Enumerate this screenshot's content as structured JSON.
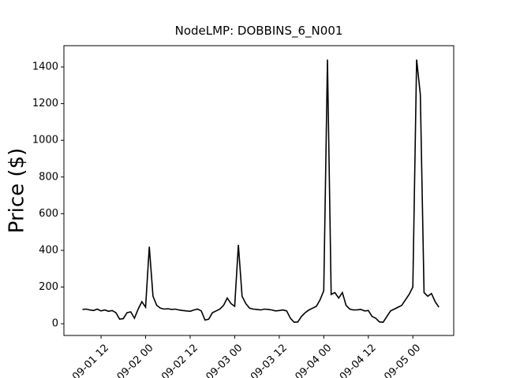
{
  "chart_data": {
    "type": "line",
    "title": "NodeLMP: DOBBINS_6_N001",
    "ylabel": "Price ($)",
    "x": [
      "09-01 07",
      "09-01 08",
      "09-01 09",
      "09-01 10",
      "09-01 11",
      "09-01 12",
      "09-01 13",
      "09-01 14",
      "09-01 15",
      "09-01 16",
      "09-01 17",
      "09-01 18",
      "09-01 19",
      "09-01 20",
      "09-01 21",
      "09-01 22",
      "09-01 23",
      "09-02 00",
      "09-02 01",
      "09-02 02",
      "09-02 03",
      "09-02 04",
      "09-02 05",
      "09-02 06",
      "09-02 07",
      "09-02 08",
      "09-02 09",
      "09-02 10",
      "09-02 11",
      "09-02 12",
      "09-02 13",
      "09-02 14",
      "09-02 15",
      "09-02 16",
      "09-02 17",
      "09-02 18",
      "09-02 19",
      "09-02 20",
      "09-02 21",
      "09-02 22",
      "09-02 23",
      "09-03 00",
      "09-03 01",
      "09-03 02",
      "09-03 03",
      "09-03 04",
      "09-03 05",
      "09-03 06",
      "09-03 07",
      "09-03 08",
      "09-03 09",
      "09-03 10",
      "09-03 11",
      "09-03 12",
      "09-03 13",
      "09-03 14",
      "09-03 15",
      "09-03 16",
      "09-03 17",
      "09-03 18",
      "09-03 19",
      "09-03 20",
      "09-03 21",
      "09-03 22",
      "09-03 23",
      "09-04 00",
      "09-04 01",
      "09-04 02",
      "09-04 03",
      "09-04 04",
      "09-04 05",
      "09-04 06",
      "09-04 07",
      "09-04 08",
      "09-04 09",
      "09-04 10",
      "09-04 11",
      "09-04 12",
      "09-04 13",
      "09-04 14",
      "09-04 15",
      "09-04 16",
      "09-04 17",
      "09-04 18",
      "09-04 19",
      "09-04 20",
      "09-04 21",
      "09-04 22",
      "09-04 23",
      "09-05 00",
      "09-05 01",
      "09-05 02",
      "09-05 03",
      "09-05 04",
      "09-05 05",
      "09-05 06",
      "09-05 07"
    ],
    "series": [
      {
        "color": "#000000",
        "values": [
          78,
          80,
          75,
          72,
          80,
          70,
          75,
          68,
          72,
          60,
          25,
          28,
          60,
          65,
          30,
          80,
          120,
          90,
          420,
          150,
          100,
          85,
          80,
          82,
          78,
          80,
          75,
          72,
          70,
          68,
          75,
          80,
          70,
          20,
          25,
          60,
          70,
          80,
          100,
          140,
          110,
          95,
          430,
          150,
          110,
          85,
          80,
          78,
          75,
          80,
          78,
          75,
          70,
          72,
          75,
          70,
          30,
          8,
          10,
          40,
          60,
          75,
          85,
          95,
          130,
          180,
          1440,
          160,
          170,
          140,
          170,
          100,
          80,
          75,
          76,
          78,
          70,
          72,
          40,
          30,
          10,
          8,
          40,
          70,
          80,
          90,
          100,
          130,
          160,
          200,
          1440,
          1250,
          170,
          150,
          165,
          120,
          90
        ]
      }
    ],
    "xlim": [
      "09-01 02",
      "09-05 11"
    ],
    "xticks": [
      "09-01 12",
      "09-02 00",
      "09-02 12",
      "09-03 00",
      "09-03 12",
      "09-04 00",
      "09-04 12",
      "09-05 00"
    ],
    "ylim": [
      -64,
      1516
    ],
    "yticks": [
      0,
      200,
      400,
      600,
      800,
      1000,
      1200,
      1400
    ]
  }
}
